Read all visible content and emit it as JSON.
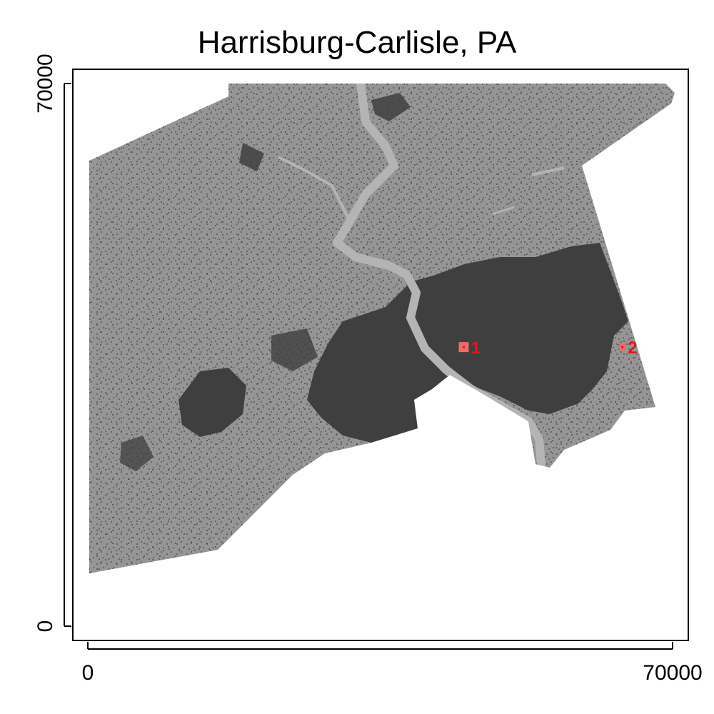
{
  "title": "Harrisburg-Carlisle, PA",
  "x_axis": {
    "ticks": [
      "0",
      "70000"
    ],
    "range": [
      0,
      70000
    ]
  },
  "y_axis": {
    "ticks": [
      "0",
      "70000"
    ],
    "range": [
      0,
      70000
    ]
  },
  "colors": {
    "land": "#959595",
    "urban": "#3f3f3f",
    "water": "#b4b4b4",
    "marker": "#f06a6a",
    "marker_label": "#e8141b",
    "frame": "#000000"
  },
  "markers": [
    {
      "label": "1",
      "x": 45000,
      "y": 36000
    },
    {
      "label": "2",
      "x": 64000,
      "y": 36000
    }
  ]
}
